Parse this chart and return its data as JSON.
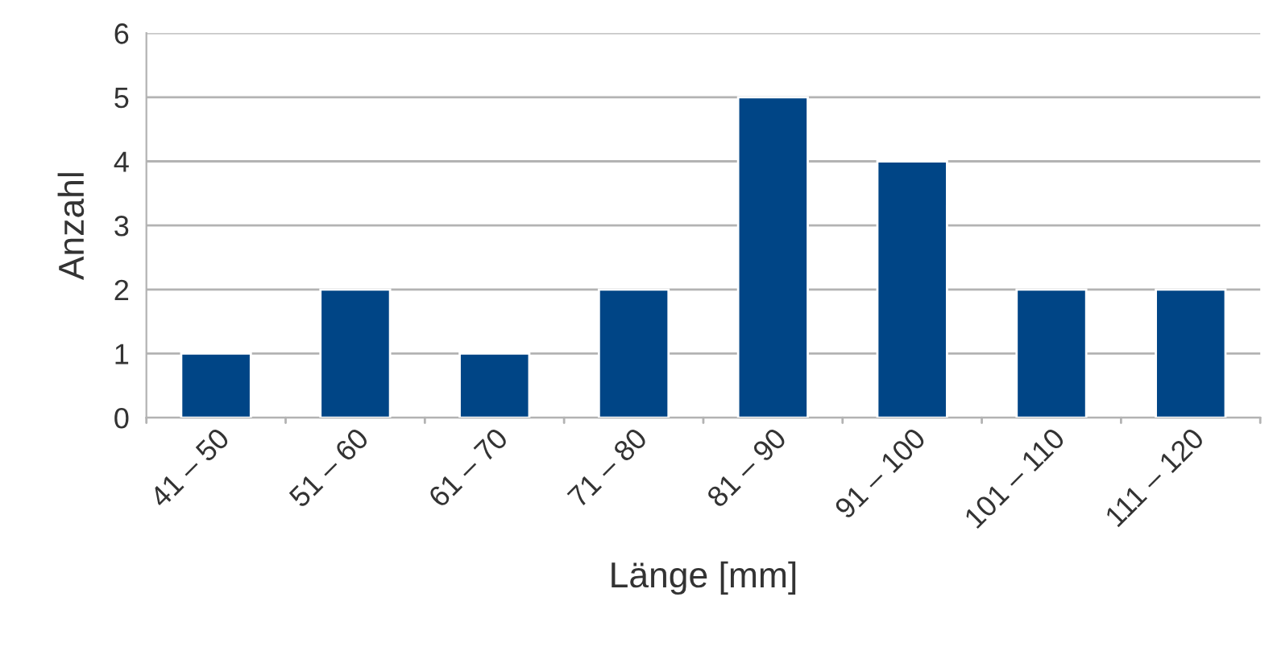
{
  "chart_data": {
    "type": "bar",
    "xlabel": "Länge [mm]",
    "ylabel": "Anzahl",
    "categories": [
      "41 – 50",
      "51 – 60",
      "61 – 70",
      "71 – 80",
      "81 – 90",
      "91 – 100",
      "101 – 110",
      "111 – 120"
    ],
    "values": [
      1,
      2,
      1,
      2,
      5,
      4,
      2,
      2
    ],
    "color": "#004586",
    "ylim": [
      0,
      6
    ],
    "yticks": [
      0,
      1,
      2,
      3,
      4,
      5,
      6
    ],
    "grid": "y"
  }
}
